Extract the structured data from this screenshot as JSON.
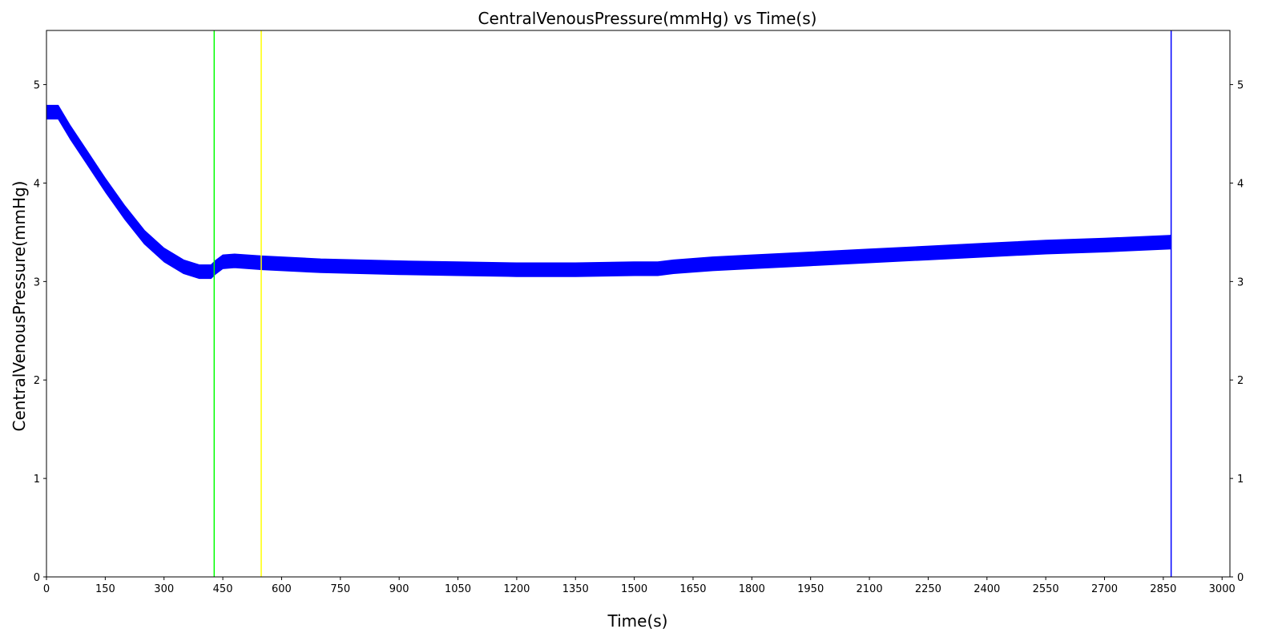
{
  "chart_data": {
    "type": "line",
    "title": "CentralVenousPressure(mmHg) vs Time(s)",
    "xlabel": "Time(s)",
    "ylabel": "CentralVenousPressure(mmHg)",
    "xlim": [
      0,
      3020
    ],
    "ylim": [
      0,
      5.55
    ],
    "x_ticks": [
      0,
      150,
      300,
      450,
      600,
      750,
      900,
      1050,
      1200,
      1350,
      1500,
      1650,
      1800,
      1950,
      2100,
      2250,
      2400,
      2550,
      2700,
      2850,
      3000
    ],
    "y_ticks": [
      0,
      1,
      2,
      3,
      4,
      5
    ],
    "right_axis_ticks": true,
    "grid": false,
    "series": [
      {
        "color": "#0000ff",
        "band_halfwidth": 0.07,
        "x": [
          0,
          30,
          60,
          100,
          150,
          200,
          250,
          300,
          350,
          390,
          420,
          430,
          450,
          480,
          550,
          700,
          900,
          1050,
          1200,
          1350,
          1500,
          1560,
          1600,
          1700,
          1800,
          1950,
          2100,
          2250,
          2400,
          2550,
          2700,
          2870
        ],
        "y": [
          4.72,
          4.72,
          4.52,
          4.28,
          3.98,
          3.7,
          3.45,
          3.27,
          3.15,
          3.1,
          3.1,
          3.14,
          3.2,
          3.21,
          3.19,
          3.16,
          3.14,
          3.13,
          3.12,
          3.12,
          3.13,
          3.13,
          3.15,
          3.18,
          3.2,
          3.23,
          3.26,
          3.29,
          3.32,
          3.35,
          3.37,
          3.4
        ]
      }
    ],
    "vlines": [
      {
        "x": 428,
        "color": "#00ff00"
      },
      {
        "x": 548,
        "color": "#ffff00"
      },
      {
        "x": 2870,
        "color": "#0000ff"
      }
    ]
  }
}
